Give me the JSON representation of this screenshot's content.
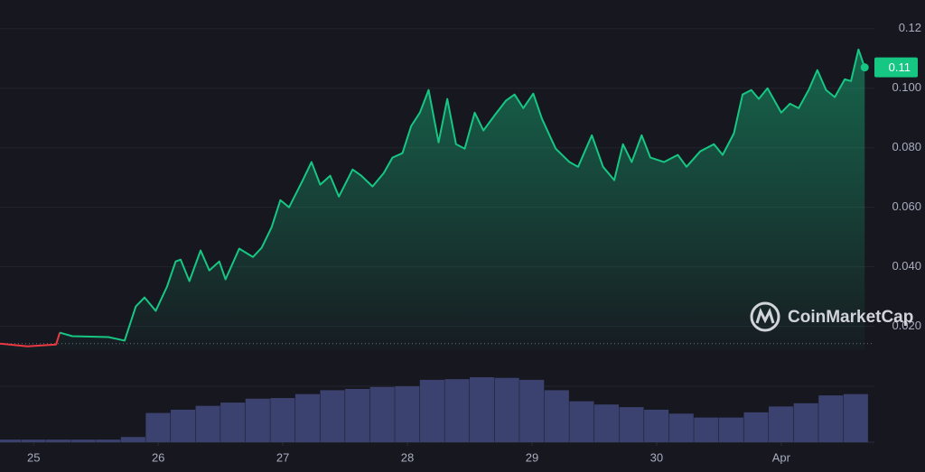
{
  "chart_data": {
    "type": "line",
    "x": [
      24.73,
      24.95,
      25.18,
      25.21,
      25.31,
      25.6,
      25.73,
      25.82,
      25.89,
      25.98,
      26.07,
      26.14,
      26.18,
      26.25,
      26.34,
      26.41,
      26.49,
      26.54,
      26.65,
      26.76,
      26.83,
      26.91,
      26.98,
      27.05,
      27.16,
      27.23,
      27.3,
      27.38,
      27.45,
      27.56,
      27.63,
      27.72,
      27.81,
      27.88,
      27.96,
      28.03,
      28.1,
      28.17,
      28.25,
      28.32,
      28.39,
      28.46,
      28.54,
      28.61,
      28.7,
      28.79,
      28.86,
      28.93,
      29.01,
      29.08,
      29.19,
      29.3,
      29.37,
      29.48,
      29.57,
      29.66,
      29.73,
      29.8,
      29.88,
      29.95,
      30.06,
      30.17,
      30.24,
      30.35,
      30.46,
      30.53,
      30.62,
      30.69,
      30.76,
      30.82,
      30.89,
      31.0,
      31.07,
      31.14,
      31.22,
      31.29,
      31.36,
      31.43,
      31.51,
      31.56,
      31.62,
      31.67
    ],
    "series": [
      {
        "color": "#16c784",
        "down_color": "#ea3943",
        "last_value_label": "0.11",
        "values": [
          0.0142,
          0.0133,
          0.0139,
          0.0179,
          0.0167,
          0.0164,
          0.0152,
          0.0267,
          0.0297,
          0.0252,
          0.0333,
          0.0418,
          0.0424,
          0.0352,
          0.0455,
          0.0388,
          0.0418,
          0.0358,
          0.0461,
          0.0433,
          0.0464,
          0.0533,
          0.0624,
          0.06,
          0.0691,
          0.0752,
          0.0676,
          0.0706,
          0.0636,
          0.0727,
          0.0706,
          0.067,
          0.0715,
          0.0767,
          0.0782,
          0.0873,
          0.0918,
          0.0994,
          0.0818,
          0.0964,
          0.0812,
          0.0797,
          0.0918,
          0.0858,
          0.0909,
          0.0958,
          0.0979,
          0.0933,
          0.0982,
          0.0897,
          0.0797,
          0.0752,
          0.0736,
          0.0842,
          0.0736,
          0.0691,
          0.0812,
          0.0752,
          0.0842,
          0.0767,
          0.0752,
          0.0776,
          0.0736,
          0.0788,
          0.0812,
          0.0776,
          0.0848,
          0.0979,
          0.0994,
          0.0964,
          0.1,
          0.0918,
          0.0948,
          0.0933,
          0.0994,
          0.1061,
          0.0994,
          0.097,
          0.103,
          0.1024,
          0.113,
          0.107
        ]
      }
    ],
    "baseline": 0.0142,
    "xlim": [
      24.73,
      31.69
    ],
    "xticks": [
      25,
      26,
      27,
      28,
      29,
      30,
      {
        "value": 31,
        "label": "Apr"
      }
    ],
    "ylim": [
      0.012,
      0.126
    ],
    "yticks": [
      0.12,
      {
        "value": 0.1,
        "label": "0.100"
      },
      {
        "value": 0.08,
        "label": "0.080"
      },
      {
        "value": 0.06,
        "label": "0.060"
      },
      {
        "value": 0.04,
        "label": "0.040"
      },
      {
        "value": 0.02,
        "label": "0.020"
      }
    ],
    "grid": true,
    "volume": {
      "color": "#3c4270",
      "x": [
        24.8,
        25.0,
        25.2,
        25.4,
        25.6,
        25.8,
        26.0,
        26.2,
        26.4,
        26.6,
        26.8,
        27.0,
        27.2,
        27.4,
        27.6,
        27.8,
        28.0,
        28.2,
        28.4,
        28.6,
        28.8,
        29.0,
        29.2,
        29.4,
        29.6,
        29.8,
        30.0,
        30.2,
        30.4,
        30.6,
        30.8,
        31.0,
        31.2,
        31.4,
        31.6
      ],
      "values": [
        4,
        4,
        4,
        4,
        4,
        8,
        45,
        50,
        56,
        61,
        67,
        68,
        74,
        80,
        82,
        85,
        86,
        96,
        97,
        100,
        99,
        96,
        80,
        63,
        58,
        54,
        50,
        44,
        38,
        38,
        46,
        55,
        60,
        72,
        74
      ],
      "ylim": [
        0,
        100
      ]
    },
    "watermark": "CoinMarketCap"
  }
}
